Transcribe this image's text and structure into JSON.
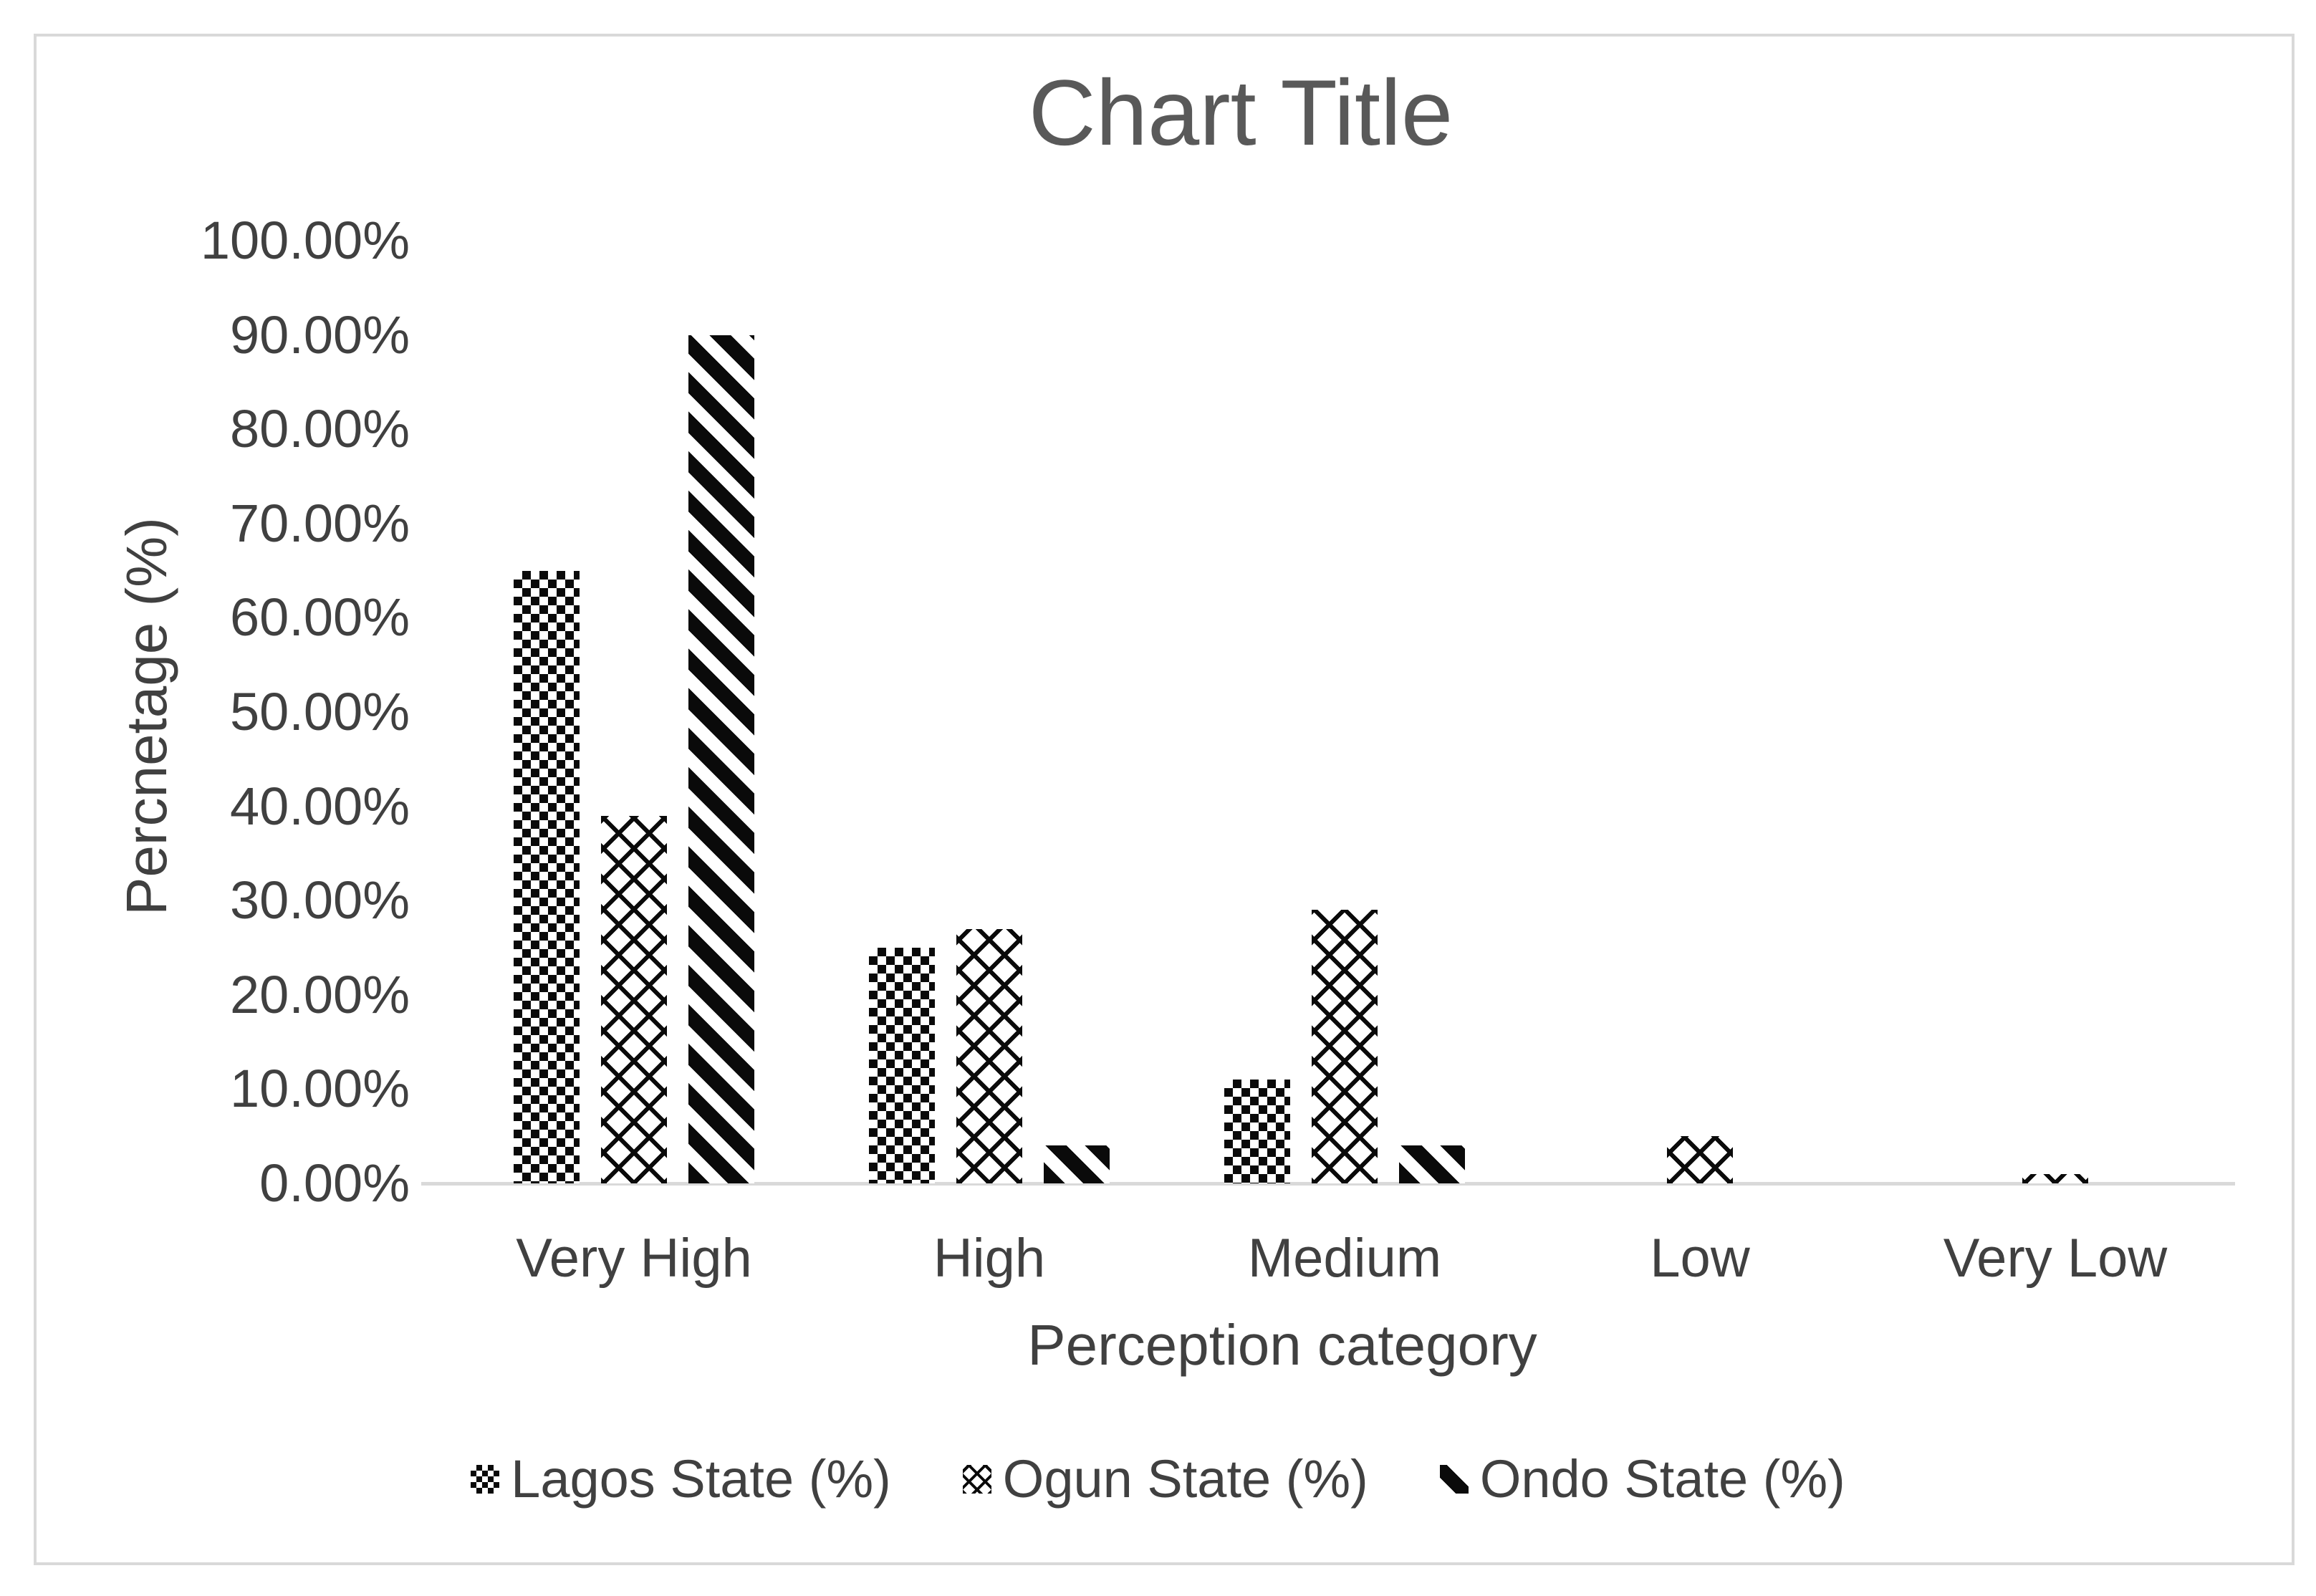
{
  "chart_data": {
    "type": "bar",
    "title": "Chart Title",
    "xlabel": "Perception category",
    "ylabel": "Percnetage (%)",
    "categories": [
      "Very High",
      "High",
      "Medium",
      "Low",
      "Very Low"
    ],
    "series": [
      {
        "name": "Lagos State (%)",
        "pattern": "dotted-grid",
        "values": [
          65,
          25,
          11,
          0,
          0
        ]
      },
      {
        "name": "Ogun State (%)",
        "pattern": "woven-zigzag",
        "values": [
          39,
          27,
          29,
          5,
          1
        ]
      },
      {
        "name": "Ondo State (%)",
        "pattern": "diagonal-stripe",
        "values": [
          90,
          4,
          4,
          0,
          0
        ]
      }
    ],
    "ylim": [
      0,
      100
    ],
    "ytick_step": 10,
    "ytick_labels": [
      "0.00%",
      "10.00%",
      "20.00%",
      "30.00%",
      "40.00%",
      "50.00%",
      "60.00%",
      "70.00%",
      "80.00%",
      "90.00%",
      "100.00%"
    ],
    "grid": false,
    "legend_position": "bottom",
    "colors": {
      "pattern_ink": "#0a0a0a",
      "axis_line": "#d9d9d9",
      "text": "#404040",
      "title_text": "#595959"
    }
  }
}
